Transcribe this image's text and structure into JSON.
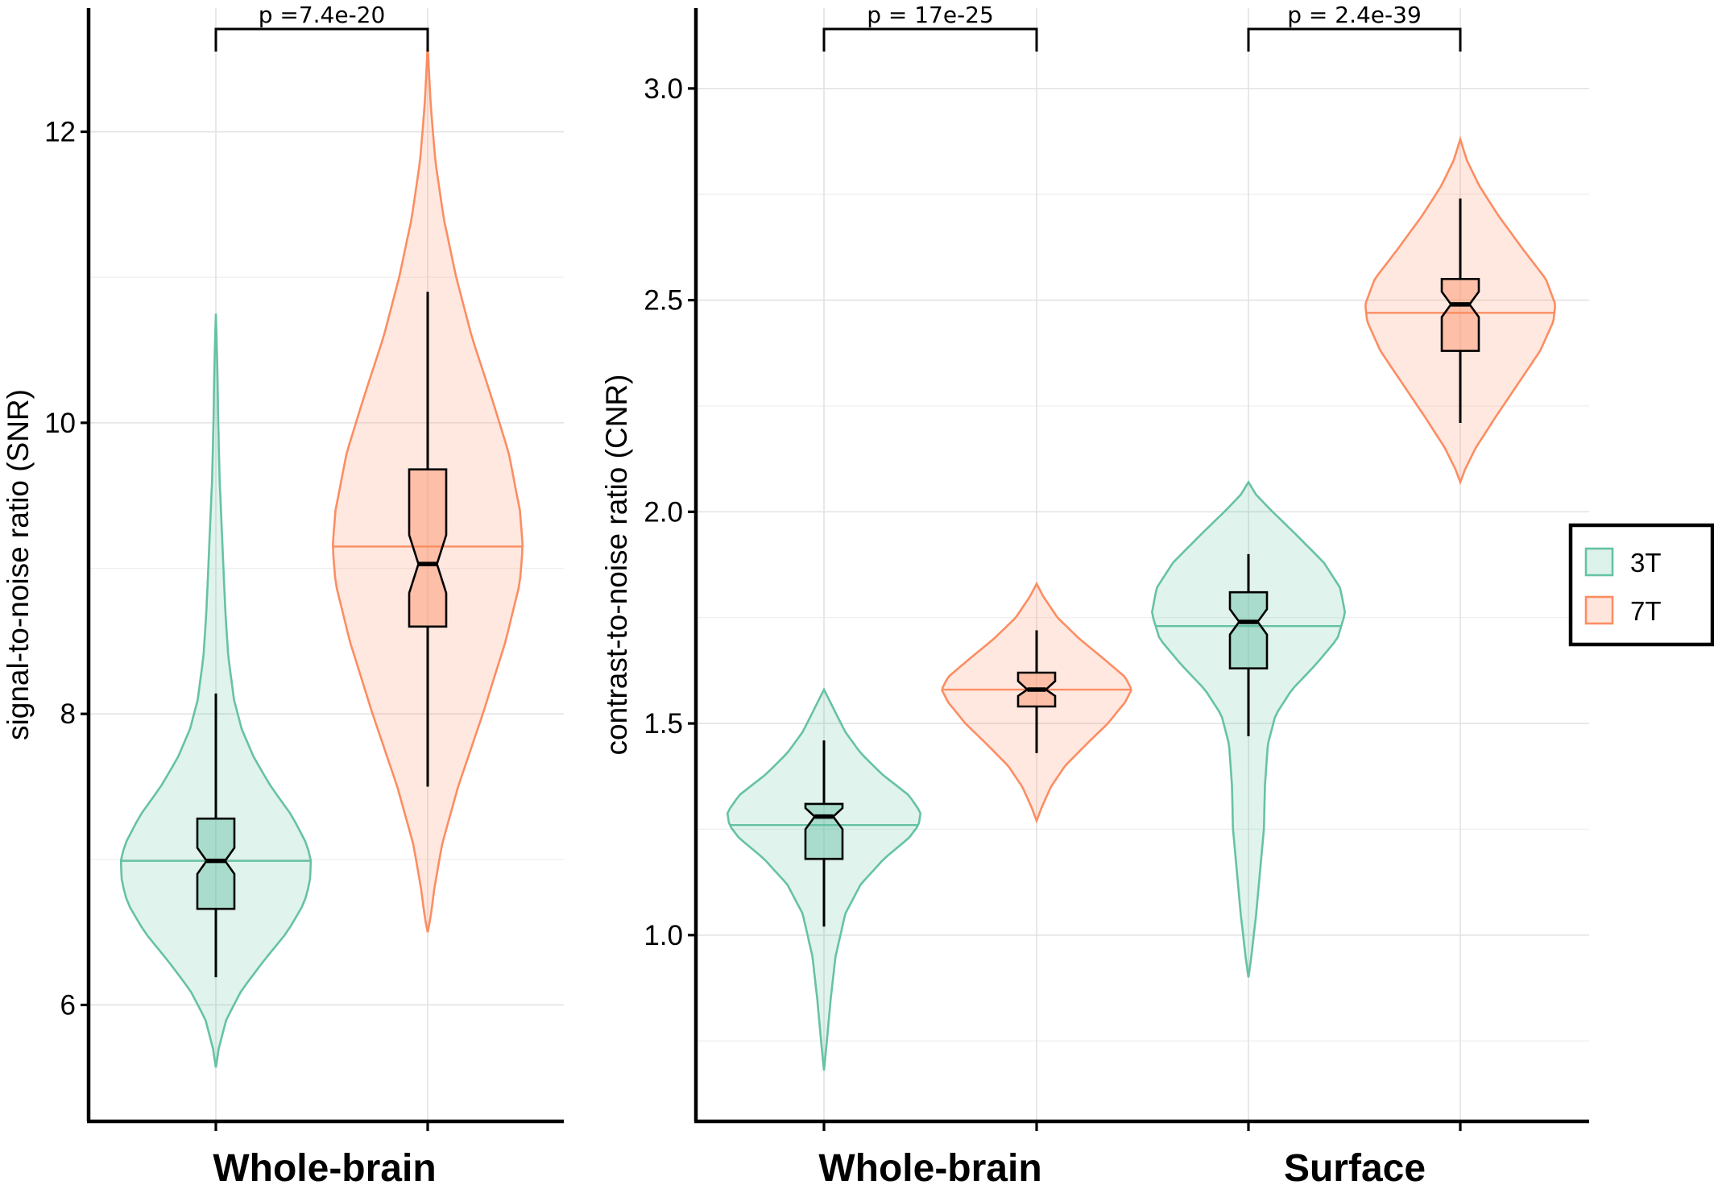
{
  "colors": {
    "3T": "#66c2a5",
    "7T": "#fc8d62",
    "whisker": "#000000",
    "grid": "#e3e3e3"
  },
  "legend": {
    "placement": "right",
    "items": [
      {
        "label": "3T",
        "color": "#66c2a5"
      },
      {
        "label": "7T",
        "color": "#fc8d62"
      }
    ]
  },
  "chart_data": [
    {
      "type": "violin",
      "ylabel": "signal-to-noise ratio (SNR)",
      "ylim": [
        5.2,
        12.85
      ],
      "yticks": [
        6,
        8,
        10,
        12
      ],
      "ytick_labels": [
        "6",
        "8",
        "10",
        "12"
      ],
      "grid": true,
      "categories": [
        "Whole-brain"
      ],
      "series": [
        {
          "name": "3T",
          "category": "Whole-brain",
          "violin": {
            "min": 5.57,
            "max": 10.75,
            "mean": 6.99,
            "profile": [
              [
                5.57,
                0.0
              ],
              [
                5.7,
                0.03
              ],
              [
                5.9,
                0.11
              ],
              [
                6.1,
                0.27
              ],
              [
                6.3,
                0.5
              ],
              [
                6.5,
                0.75
              ],
              [
                6.7,
                0.93
              ],
              [
                6.85,
                0.99
              ],
              [
                6.99,
                1.0
              ],
              [
                7.1,
                0.96
              ],
              [
                7.3,
                0.8
              ],
              [
                7.5,
                0.58
              ],
              [
                7.7,
                0.4
              ],
              [
                7.9,
                0.27
              ],
              [
                8.1,
                0.19
              ],
              [
                8.4,
                0.13
              ],
              [
                8.7,
                0.1
              ],
              [
                9.0,
                0.08
              ],
              [
                9.3,
                0.06
              ],
              [
                9.6,
                0.04
              ],
              [
                10.0,
                0.025
              ],
              [
                10.4,
                0.015
              ],
              [
                10.75,
                0.0
              ]
            ]
          },
          "box": {
            "q1": 6.66,
            "median": 6.99,
            "q3": 7.28,
            "whisker_low": 6.19,
            "whisker_high": 8.14,
            "notch_low": 6.9,
            "notch_high": 7.08
          }
        },
        {
          "name": "7T",
          "category": "Whole-brain",
          "violin": {
            "min": 6.5,
            "max": 12.6,
            "mean": 9.15,
            "profile": [
              [
                6.5,
                0.0
              ],
              [
                6.6,
                0.03
              ],
              [
                6.8,
                0.07
              ],
              [
                7.1,
                0.15
              ],
              [
                7.5,
                0.32
              ],
              [
                8.0,
                0.58
              ],
              [
                8.5,
                0.82
              ],
              [
                8.9,
                0.97
              ],
              [
                9.15,
                1.0
              ],
              [
                9.4,
                0.97
              ],
              [
                9.8,
                0.85
              ],
              [
                10.2,
                0.66
              ],
              [
                10.6,
                0.46
              ],
              [
                11.0,
                0.3
              ],
              [
                11.4,
                0.17
              ],
              [
                11.8,
                0.08
              ],
              [
                12.2,
                0.03
              ],
              [
                12.6,
                0.0
              ]
            ]
          },
          "box": {
            "q1": 8.6,
            "median": 9.03,
            "q3": 9.68,
            "whisker_low": 7.5,
            "whisker_high": 10.9,
            "notch_low": 8.83,
            "notch_high": 9.23
          }
        }
      ],
      "comparisons": [
        {
          "category": "Whole-brain",
          "label": "p =7.4e-20"
        }
      ]
    },
    {
      "type": "violin",
      "ylabel": "contrast-to-noise ratio (CNR)",
      "ylim": [
        0.56,
        3.19
      ],
      "yticks": [
        1.0,
        1.5,
        2.0,
        2.5,
        3.0
      ],
      "ytick_labels": [
        "1.0",
        "1.5",
        "2.0",
        "2.5",
        "3.0"
      ],
      "grid": true,
      "categories": [
        "Whole-brain",
        "Surface"
      ],
      "series": [
        {
          "name": "3T",
          "category": "Whole-brain",
          "violin": {
            "min": 0.68,
            "max": 1.58,
            "mean": 1.26,
            "profile": [
              [
                0.68,
                0.0
              ],
              [
                0.75,
                0.03
              ],
              [
                0.85,
                0.07
              ],
              [
                0.95,
                0.12
              ],
              [
                1.05,
                0.22
              ],
              [
                1.12,
                0.38
              ],
              [
                1.18,
                0.62
              ],
              [
                1.23,
                0.88
              ],
              [
                1.26,
                0.98
              ],
              [
                1.29,
                1.0
              ],
              [
                1.33,
                0.88
              ],
              [
                1.38,
                0.6
              ],
              [
                1.43,
                0.38
              ],
              [
                1.48,
                0.22
              ],
              [
                1.53,
                0.11
              ],
              [
                1.58,
                0.0
              ]
            ]
          },
          "box": {
            "q1": 1.18,
            "median": 1.28,
            "q3": 1.31,
            "whisker_low": 1.02,
            "whisker_high": 1.46,
            "notch_low": 1.25,
            "notch_high": 1.3
          }
        },
        {
          "name": "7T",
          "category": "Whole-brain",
          "violin": {
            "min": 1.27,
            "max": 1.83,
            "mean": 1.58,
            "profile": [
              [
                1.27,
                0.0
              ],
              [
                1.3,
                0.05
              ],
              [
                1.35,
                0.15
              ],
              [
                1.4,
                0.3
              ],
              [
                1.45,
                0.52
              ],
              [
                1.5,
                0.75
              ],
              [
                1.55,
                0.93
              ],
              [
                1.58,
                1.0
              ],
              [
                1.61,
                0.93
              ],
              [
                1.65,
                0.72
              ],
              [
                1.7,
                0.45
              ],
              [
                1.75,
                0.22
              ],
              [
                1.8,
                0.07
              ],
              [
                1.83,
                0.0
              ]
            ]
          },
          "box": {
            "q1": 1.54,
            "median": 1.58,
            "q3": 1.62,
            "whisker_low": 1.43,
            "whisker_high": 1.72,
            "notch_low": 1.565,
            "notch_high": 1.6
          }
        },
        {
          "name": "3T",
          "category": "Surface",
          "violin": {
            "min": 0.9,
            "max": 2.07,
            "mean": 1.73,
            "profile": [
              [
                0.9,
                0.0
              ],
              [
                0.95,
                0.03
              ],
              [
                1.05,
                0.08
              ],
              [
                1.15,
                0.12
              ],
              [
                1.25,
                0.16
              ],
              [
                1.35,
                0.17
              ],
              [
                1.45,
                0.2
              ],
              [
                1.52,
                0.28
              ],
              [
                1.58,
                0.45
              ],
              [
                1.64,
                0.7
              ],
              [
                1.7,
                0.92
              ],
              [
                1.76,
                1.0
              ],
              [
                1.82,
                0.95
              ],
              [
                1.88,
                0.78
              ],
              [
                1.94,
                0.52
              ],
              [
                2.0,
                0.25
              ],
              [
                2.04,
                0.08
              ],
              [
                2.07,
                0.0
              ]
            ]
          },
          "box": {
            "q1": 1.63,
            "median": 1.74,
            "q3": 1.81,
            "whisker_low": 1.47,
            "whisker_high": 1.9,
            "notch_low": 1.71,
            "notch_high": 1.77
          }
        },
        {
          "name": "7T",
          "category": "Surface",
          "violin": {
            "min": 2.07,
            "max": 2.88,
            "mean": 2.47,
            "profile": [
              [
                2.07,
                0.0
              ],
              [
                2.1,
                0.05
              ],
              [
                2.15,
                0.16
              ],
              [
                2.22,
                0.36
              ],
              [
                2.3,
                0.6
              ],
              [
                2.38,
                0.84
              ],
              [
                2.45,
                0.98
              ],
              [
                2.49,
                1.0
              ],
              [
                2.55,
                0.9
              ],
              [
                2.62,
                0.66
              ],
              [
                2.7,
                0.4
              ],
              [
                2.77,
                0.2
              ],
              [
                2.83,
                0.07
              ],
              [
                2.88,
                0.0
              ]
            ]
          },
          "box": {
            "q1": 2.38,
            "median": 2.49,
            "q3": 2.55,
            "whisker_low": 2.21,
            "whisker_high": 2.74,
            "notch_low": 2.46,
            "notch_high": 2.52
          }
        }
      ],
      "comparisons": [
        {
          "category": "Whole-brain",
          "label": "p = 17e-25"
        },
        {
          "category": "Surface",
          "label": "p = 2.4e-39"
        }
      ]
    }
  ]
}
